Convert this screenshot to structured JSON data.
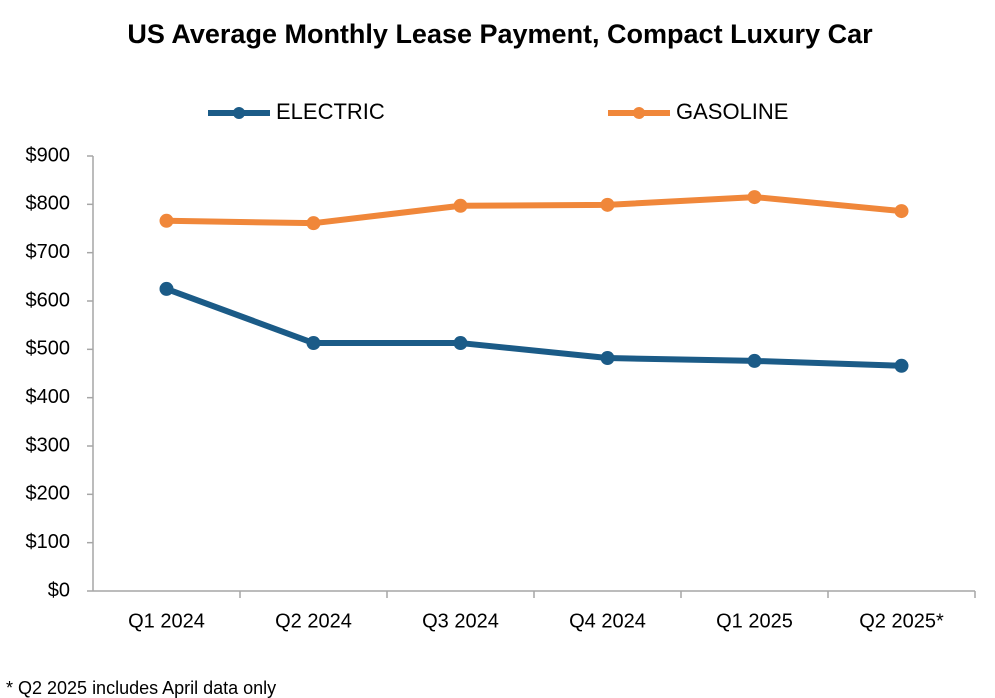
{
  "chart_data": {
    "type": "line",
    "title": "US Average Monthly Lease Payment, Compact Luxury Car",
    "categories": [
      "Q1 2024",
      "Q2 2024",
      "Q3 2024",
      "Q4 2024",
      "Q1 2025",
      "Q2 2025*"
    ],
    "series": [
      {
        "name": "ELECTRIC",
        "color": "#1b5b87",
        "values": [
          625,
          513,
          513,
          482,
          476,
          466
        ]
      },
      {
        "name": "GASOLINE",
        "color": "#f0873a",
        "values": [
          766,
          761,
          797,
          799,
          815,
          786
        ]
      }
    ],
    "ylim": [
      0,
      900
    ],
    "yticks": [
      {
        "value": 0,
        "label": "$0"
      },
      {
        "value": 100,
        "label": "$100"
      },
      {
        "value": 200,
        "label": "$200"
      },
      {
        "value": 300,
        "label": "$300"
      },
      {
        "value": 400,
        "label": "$400"
      },
      {
        "value": 500,
        "label": "$500"
      },
      {
        "value": 600,
        "label": "$600"
      },
      {
        "value": 700,
        "label": "$700"
      },
      {
        "value": 800,
        "label": "$800"
      },
      {
        "value": 900,
        "label": "$900"
      }
    ],
    "grid": false,
    "legend": "top",
    "footnote": "* Q2 2025 includes April data only"
  }
}
